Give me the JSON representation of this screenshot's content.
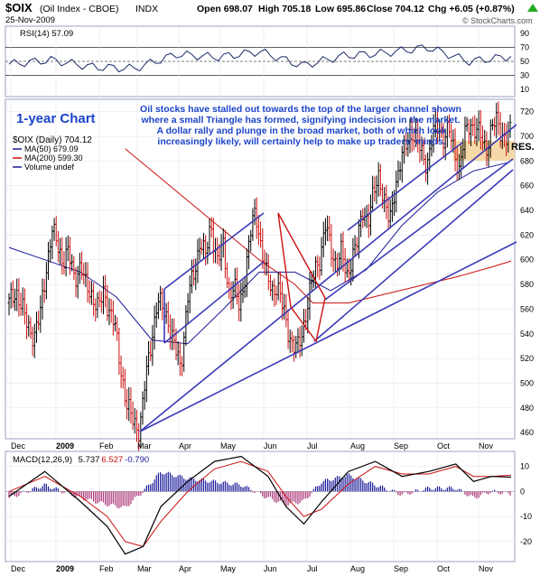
{
  "header": {
    "symbol": "$OIX",
    "name": "(Oil Index - CBOE)",
    "exchange": "INDX",
    "date": "25-Nov-2009",
    "open": "Open 698.07",
    "high": "High 705.18",
    "low": "Low 695.86",
    "close": "Close 704.12",
    "chg": "Chg +6.05 (+0.87%)",
    "watermark": "© StockCharts.com",
    "up_arrow": "up-triangle-icon"
  },
  "rsi_panel": {
    "label": "RSI(14) 57.09",
    "ticks": [
      "90",
      "70",
      "50",
      "30",
      "10"
    ]
  },
  "main_panel": {
    "chart_label": "1-year Chart",
    "commentary": [
      "Oil stocks have stalled out towards the top of the larger channel shown",
      "where a small Triangle has formed, signifying indecision in the market.",
      "A dollar rally and plunge in the broad market, both of which look",
      "increasingly likely, will certainly help to make up traders' minds."
    ],
    "res_label": "RES.",
    "legend": [
      {
        "text": "$OIX (Daily) 704.12",
        "color": "#000000"
      },
      {
        "text": "MA(50) 679.09",
        "color": "#1a1a9a"
      },
      {
        "text": "MA(200) 599.30",
        "color": "#cc1111"
      },
      {
        "text": "Volume undef",
        "color": "#1a1a9a"
      }
    ],
    "price_ticks": [
      "720",
      "700",
      "680",
      "660",
      "640",
      "620",
      "600",
      "580",
      "560",
      "540",
      "520",
      "500",
      "480",
      "460"
    ],
    "month_labels": [
      "Dec",
      "2009",
      "Feb",
      "Mar",
      "Apr",
      "May",
      "Jun",
      "Jul",
      "Aug",
      "Sep",
      "Oct",
      "Nov"
    ]
  },
  "macd_panel": {
    "label_prefix": "MACD(12,26,9)",
    "macd": "5.737",
    "signal": "6.527",
    "hist": "-0.790",
    "ticks": [
      "10",
      "0",
      "-10",
      "-20"
    ],
    "month_labels": [
      "Dec",
      "2009",
      "Feb",
      "Mar",
      "Apr",
      "May",
      "Jun",
      "Jul",
      "Aug",
      "Sep",
      "Oct",
      "Nov"
    ]
  },
  "colors": {
    "panel_bg": "#ffffff",
    "frame": "#9aa0c0",
    "text_blue": "#1c44c8",
    "channel": "#3a3ab8",
    "ma50": "#1a1a9a",
    "ma200": "#cc1111",
    "res_fill": "#f6d9a8",
    "up_arrow": "#22aa22"
  },
  "chart_data": [
    {
      "type": "line",
      "name": "RSI(14)",
      "x": [
        "Dec",
        "Jan",
        "Feb",
        "Mar",
        "Apr",
        "May",
        "Jun",
        "Jul",
        "Aug",
        "Sep",
        "Oct",
        "Nov",
        "Nov-25"
      ],
      "y": [
        46,
        52,
        42,
        40,
        60,
        56,
        64,
        44,
        58,
        62,
        70,
        50,
        57.09
      ],
      "ylim": [
        0,
        100
      ],
      "reference_lines": [
        70,
        50,
        30
      ]
    },
    {
      "type": "line",
      "name": "$OIX (Daily)",
      "ylabel": "",
      "ylim": [
        455,
        730
      ],
      "months": [
        "Dec",
        "2009",
        "Feb",
        "Mar",
        "Apr",
        "May",
        "Jun",
        "Jul",
        "Aug",
        "Sep",
        "Oct",
        "Nov"
      ],
      "series": [
        {
          "name": "$OIX (Daily) 704.12",
          "x": [
            0,
            8,
            15,
            20,
            28,
            35,
            41,
            48,
            54,
            60,
            66,
            73,
            80,
            86,
            93,
            100,
            106,
            112,
            118,
            125,
            132,
            138,
            146,
            152,
            160,
            166,
            172,
            178,
            185,
            192,
            200,
            208,
            214,
            220,
            226,
            233,
            240,
            246,
            252,
            258,
            264,
            270,
            276,
            282,
            288,
            294,
            300,
            306,
            312,
            318,
            324,
            330,
            336,
            342,
            348,
            354,
            360,
            366,
            372,
            378,
            384,
            390,
            396,
            402,
            408,
            414,
            420,
            426,
            432,
            438,
            444,
            450,
            456,
            462,
            468,
            474,
            480,
            486,
            492,
            498,
            504,
            510,
            516,
            522,
            528,
            534,
            540,
            546,
            552,
            558,
            562
          ],
          "values": [
            565,
            575,
            560,
            548,
            538,
            555,
            590,
            624,
            612,
            600,
            606,
            585,
            596,
            578,
            572,
            560,
            574,
            560,
            548,
            512,
            482,
            470,
            462,
            498,
            538,
            567,
            560,
            552,
            530,
            512,
            570,
            590,
            618,
            602,
            628,
            600,
            610,
            574,
            578,
            560,
            588,
            620,
            640,
            612,
            588,
            575,
            580,
            562,
            544,
            530,
            528,
            548,
            572,
            590,
            602,
            628,
            608,
            598,
            606,
            585,
            604,
            614,
            640,
            632,
            652,
            670,
            648,
            628,
            660,
            678,
            692,
            706,
            696,
            686,
            678,
            700,
            710,
            698,
            705,
            690,
            672,
            700,
            712,
            705,
            700,
            690,
            706,
            712,
            702,
            698,
            704.12
          ]
        },
        {
          "name": "MA(50) 679.09",
          "x": [
            0,
            40,
            80,
            120,
            160,
            200,
            240,
            280,
            320,
            360,
            400,
            440,
            480,
            520,
            560
          ],
          "values": [
            610,
            600,
            590,
            570,
            535,
            532,
            560,
            590,
            590,
            575,
            592,
            628,
            655,
            672,
            679
          ]
        },
        {
          "name": "MA(200) 599.30",
          "x": [
            130,
            180,
            230,
            280,
            320,
            340,
            380,
            420,
            460,
            500,
            540,
            562
          ],
          "values": [
            690,
            660,
            630,
            600,
            580,
            565,
            565,
            572,
            579,
            586,
            594,
            599
          ]
        }
      ],
      "trendlines_note": "channel lines and triangle drawn by chartist",
      "annotations": [
        "RES."
      ]
    },
    {
      "type": "line",
      "name": "MACD(12,26,9)",
      "ylim": [
        -28,
        16
      ],
      "series": [
        {
          "name": "MACD",
          "x": [
            0,
            40,
            80,
            110,
            130,
            150,
            170,
            200,
            230,
            260,
            290,
            310,
            330,
            350,
            380,
            410,
            440,
            470,
            500,
            520,
            540,
            562
          ],
          "values": [
            -2,
            8,
            -4,
            -14,
            -25,
            -22,
            -6,
            4,
            12,
            14,
            6,
            -6,
            -13,
            -4,
            8,
            12,
            6,
            8,
            11,
            4,
            6,
            5.737
          ]
        },
        {
          "name": "Signal",
          "x": [
            0,
            40,
            80,
            110,
            130,
            150,
            170,
            200,
            230,
            260,
            290,
            310,
            330,
            350,
            380,
            410,
            440,
            470,
            500,
            520,
            540,
            562
          ],
          "values": [
            0,
            6,
            -2,
            -10,
            -20,
            -22,
            -12,
            0,
            9,
            12,
            8,
            -2,
            -10,
            -7,
            3,
            10,
            7,
            7,
            10,
            6,
            6,
            6.527
          ]
        }
      ],
      "hist_last": -0.79
    }
  ]
}
